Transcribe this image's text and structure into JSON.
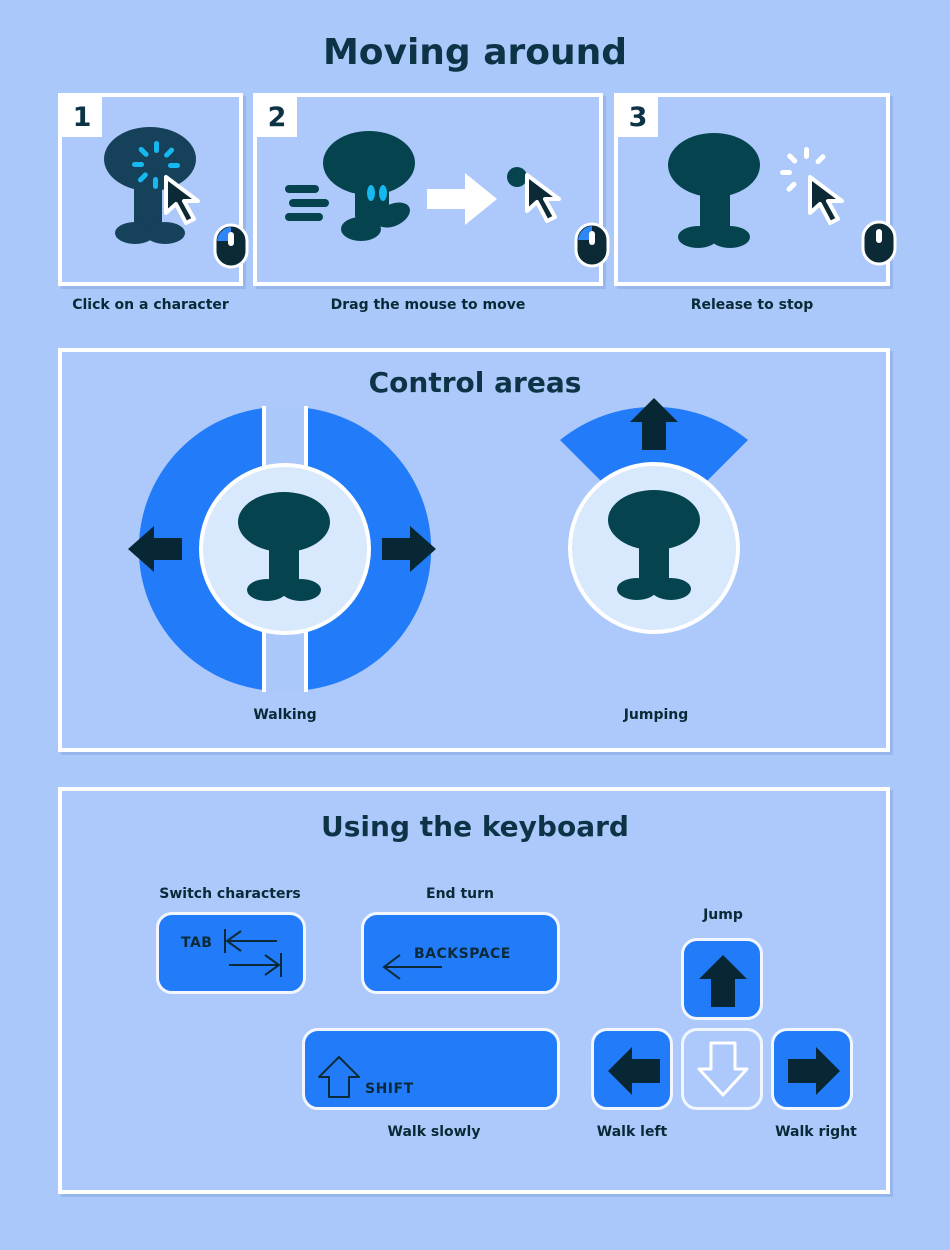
{
  "page_title": "Moving around",
  "steps": [
    {
      "number": "1",
      "caption": "Click on a character"
    },
    {
      "number": "2",
      "caption": "Drag the mouse to move"
    },
    {
      "number": "3",
      "caption": "Release to stop"
    }
  ],
  "control_areas": {
    "title": "Control areas",
    "walking_label": "Walking",
    "jumping_label": "Jumping"
  },
  "keyboard": {
    "title": "Using the keyboard",
    "switch_label": "Switch characters",
    "tab_key": "TAB",
    "end_turn_label": "End turn",
    "backspace_key": "BACKSPACE",
    "shift_key": "SHIFT",
    "walk_slowly_label": "Walk slowly",
    "jump_label": "Jump",
    "walk_left_label": "Walk left",
    "walk_right_label": "Walk right"
  },
  "colors": {
    "background": "#abc8fb",
    "accent_blue": "#227cf9",
    "character": "#05444f",
    "highlight": "#16b8f0"
  }
}
